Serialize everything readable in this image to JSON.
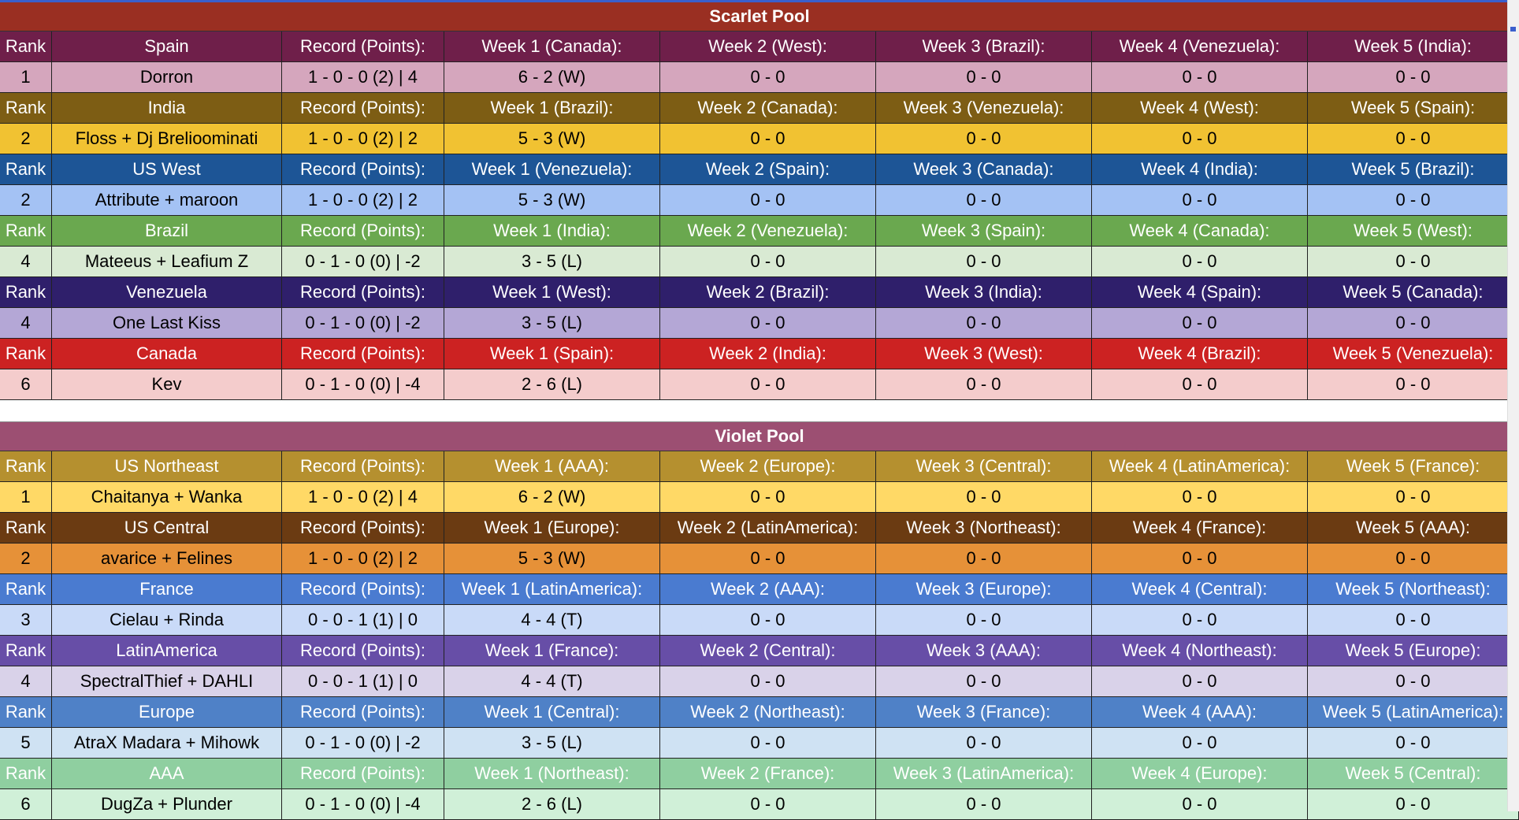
{
  "pools": [
    {
      "title": "Scarlet Pool",
      "color": "#9a2f22",
      "teams": [
        {
          "rank_label": "Rank",
          "team": "Spain",
          "record_label": "Record (Points):",
          "weeks": [
            "Week 1 (Canada):",
            "Week 2 (West):",
            "Week 3 (Brazil):",
            "Week 4 (Venezuela):",
            "Week 5 (India):"
          ],
          "rank": "1",
          "players": "Dorron",
          "record": "1 - 0 - 0 (2) | 4",
          "results": [
            "6 - 2 (W)",
            "0 - 0",
            "0 - 0",
            "0 - 0",
            "0 - 0"
          ],
          "header_color": "#6f1f4a",
          "row_color": "#d5a6bd"
        },
        {
          "rank_label": "Rank",
          "team": "India",
          "record_label": "Record (Points):",
          "weeks": [
            "Week 1 (Brazil):",
            "Week 2 (Canada):",
            "Week 3 (Venezuela):",
            "Week 4 (West):",
            "Week 5 (Spain):"
          ],
          "rank": "2",
          "players": "Floss + Dj Brelioominati",
          "record": "1 - 0 - 0 (2) | 2",
          "results": [
            "5 - 3 (W)",
            "0 - 0",
            "0 - 0",
            "0 - 0",
            "0 - 0"
          ],
          "header_color": "#7d5d14",
          "row_color": "#f1c232"
        },
        {
          "rank_label": "Rank",
          "team": "US West",
          "record_label": "Record (Points):",
          "weeks": [
            "Week 1 (Venezuela):",
            "Week 2 (Spain):",
            "Week 3 (Canada):",
            "Week 4 (India):",
            "Week 5 (Brazil):"
          ],
          "rank": "2",
          "players": "Attribute + maroon",
          "record": "1 - 0 - 0 (2) | 2",
          "results": [
            "5 - 3 (W)",
            "0 - 0",
            "0 - 0",
            "0 - 0",
            "0 - 0"
          ],
          "header_color": "#1d5596",
          "row_color": "#a4c2f4"
        },
        {
          "rank_label": "Rank",
          "team": "Brazil",
          "record_label": "Record (Points):",
          "weeks": [
            "Week 1 (India):",
            "Week 2 (Venezuela):",
            "Week 3 (Spain):",
            "Week 4 (Canada):",
            "Week 5 (West):"
          ],
          "rank": "4",
          "players": "Mateeus + Leafium Z",
          "record": "0 - 1 - 0 (0) | -2",
          "results": [
            "3 - 5 (L)",
            "0 - 0",
            "0 - 0",
            "0 - 0",
            "0 - 0"
          ],
          "header_color": "#6aa84f",
          "row_color": "#d9ead3"
        },
        {
          "rank_label": "Rank",
          "team": "Venezuela",
          "record_label": "Record (Points):",
          "weeks": [
            "Week 1 (West):",
            "Week 2 (Brazil):",
            "Week 3 (India):",
            "Week 4 (Spain):",
            "Week 5 (Canada):"
          ],
          "rank": "4",
          "players": "One Last Kiss",
          "record": "0 - 1 - 0 (0) | -2",
          "results": [
            "3 - 5 (L)",
            "0 - 0",
            "0 - 0",
            "0 - 0",
            "0 - 0"
          ],
          "header_color": "#2f1f6b",
          "row_color": "#b4a7d6"
        },
        {
          "rank_label": "Rank",
          "team": "Canada",
          "record_label": "Record (Points):",
          "weeks": [
            "Week 1 (Spain):",
            "Week 2 (India):",
            "Week 3 (West):",
            "Week 4 (Brazil):",
            "Week 5 (Venezuela):"
          ],
          "rank": "6",
          "players": "Kev",
          "record": "0 - 1 - 0 (0) | -4",
          "results": [
            "2 - 6 (L)",
            "0 - 0",
            "0 - 0",
            "0 - 0",
            "0 - 0"
          ],
          "header_color": "#cc2222",
          "row_color": "#f4cccc"
        }
      ]
    },
    {
      "title": "Violet Pool",
      "color": "#9c4f72",
      "teams": [
        {
          "rank_label": "Rank",
          "team": "US Northeast",
          "record_label": "Record (Points):",
          "weeks": [
            "Week 1 (AAA):",
            "Week 2 (Europe):",
            "Week 3 (Central):",
            "Week 4 (LatinAmerica):",
            "Week 5 (France):"
          ],
          "rank": "1",
          "players": "Chaitanya + Wanka",
          "record": "1 - 0 - 0 (2) | 4",
          "results": [
            "6 - 2 (W)",
            "0 - 0",
            "0 - 0",
            "0 - 0",
            "0 - 0"
          ],
          "header_color": "#b5902f",
          "row_color": "#ffd966"
        },
        {
          "rank_label": "Rank",
          "team": "US Central",
          "record_label": "Record (Points):",
          "weeks": [
            "Week 1 (Europe):",
            "Week 2 (LatinAmerica):",
            "Week 3 (Northeast):",
            "Week 4 (France):",
            "Week 5 (AAA):"
          ],
          "rank": "2",
          "players": "avarice + Felines",
          "record": "1 - 0 - 0 (2) | 2",
          "results": [
            "5 - 3 (W)",
            "0 - 0",
            "0 - 0",
            "0 - 0",
            "0 - 0"
          ],
          "header_color": "#6b3b12",
          "row_color": "#e69138"
        },
        {
          "rank_label": "Rank",
          "team": "France",
          "record_label": "Record (Points):",
          "weeks": [
            "Week 1 (LatinAmerica):",
            "Week 2 (AAA):",
            "Week 3 (Europe):",
            "Week 4 (Central):",
            "Week 5 (Northeast):"
          ],
          "rank": "3",
          "players": "Cielau + Rinda",
          "record": "0 - 0 - 1 (1) | 0",
          "results": [
            "4 - 4 (T)",
            "0 - 0",
            "0 - 0",
            "0 - 0",
            "0 - 0"
          ],
          "header_color": "#4a7bd0",
          "row_color": "#c9daf8"
        },
        {
          "rank_label": "Rank",
          "team": "LatinAmerica",
          "record_label": "Record (Points):",
          "weeks": [
            "Week 1 (France):",
            "Week 2 (Central):",
            "Week 3 (AAA):",
            "Week 4 (Northeast):",
            "Week 5 (Europe):"
          ],
          "rank": "4",
          "players": "SpectralThief + DAHLI",
          "record": "0 - 0 - 1 (1) | 0",
          "results": [
            "4 - 4 (T)",
            "0 - 0",
            "0 - 0",
            "0 - 0",
            "0 - 0"
          ],
          "header_color": "#674ea7",
          "row_color": "#d9d2e9"
        },
        {
          "rank_label": "Rank",
          "team": "Europe",
          "record_label": "Record (Points):",
          "weeks": [
            "Week 1 (Central):",
            "Week 2 (Northeast):",
            "Week 3 (France):",
            "Week 4 (AAA):",
            "Week 5 (LatinAmerica):"
          ],
          "rank": "5",
          "players": "AtraX Madara + Mihowk",
          "record": "0 - 1 - 0 (0) | -2",
          "results": [
            "3 - 5 (L)",
            "0 - 0",
            "0 - 0",
            "0 - 0",
            "0 - 0"
          ],
          "header_color": "#4f81c7",
          "row_color": "#cfe2f3"
        },
        {
          "rank_label": "Rank",
          "team": "AAA",
          "record_label": "Record (Points):",
          "weeks": [
            "Week 1 (Northeast):",
            "Week 2 (France):",
            "Week 3 (LatinAmerica):",
            "Week 4 (Europe):",
            "Week 5 (Central):"
          ],
          "rank": "6",
          "players": "DugZa + Plunder",
          "record": "0 - 1 - 0 (0) | -4",
          "results": [
            "2 - 6 (L)",
            "0 - 0",
            "0 - 0",
            "0 - 0",
            "0 - 0"
          ],
          "header_color": "#8fcfa0",
          "row_color": "#d0f0d8"
        }
      ]
    }
  ]
}
